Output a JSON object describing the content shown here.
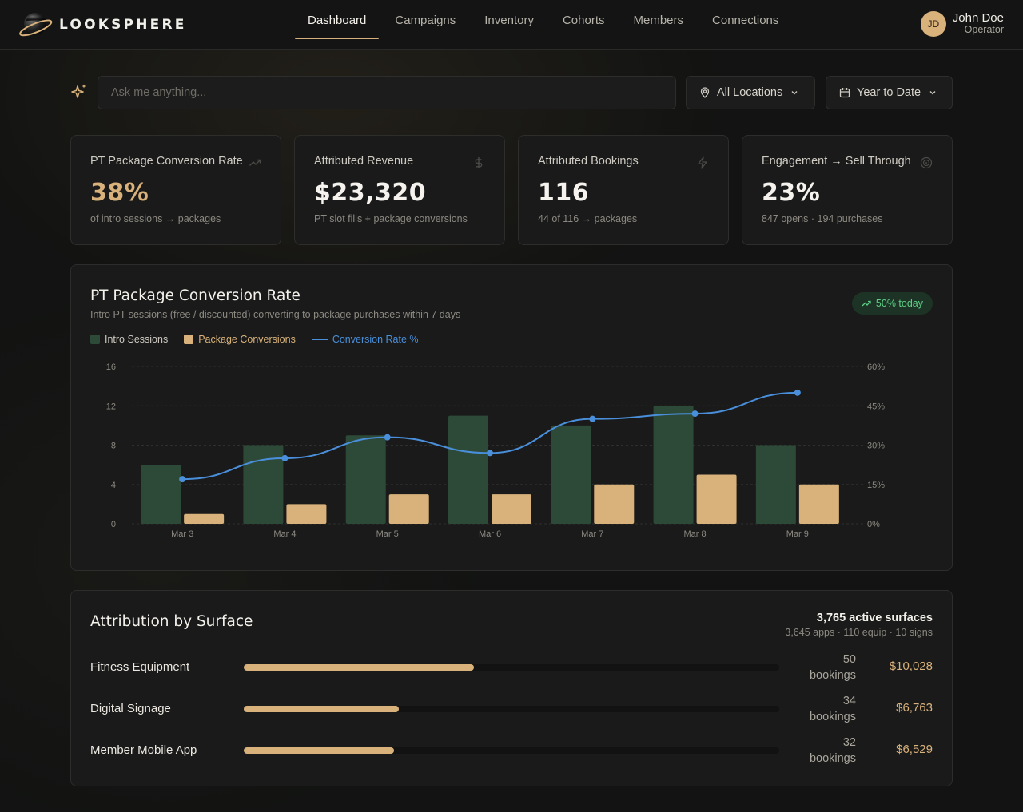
{
  "brand": {
    "name": "LOOKSPHERE"
  },
  "nav": {
    "items": [
      {
        "label": "Dashboard",
        "active": true
      },
      {
        "label": "Campaigns"
      },
      {
        "label": "Inventory"
      },
      {
        "label": "Cohorts"
      },
      {
        "label": "Members"
      },
      {
        "label": "Connections"
      }
    ]
  },
  "user": {
    "initials": "JD",
    "name": "John Doe",
    "role": "Operator"
  },
  "search": {
    "placeholder": "Ask me anything...",
    "value": ""
  },
  "filters": {
    "location": "All Locations",
    "period": "Year to Date"
  },
  "kpis": [
    {
      "title": "PT Package Conversion Rate",
      "value": "38%",
      "sub": "of intro sessions → packages",
      "icon": "trend-up-icon"
    },
    {
      "title": "Attributed Revenue",
      "value": "$23,320",
      "sub": "PT slot fills + package conversions",
      "icon": "dollar-icon"
    },
    {
      "title": "Attributed Bookings",
      "value": "116",
      "sub": "44 of 116 → packages",
      "icon": "lightning-icon"
    },
    {
      "title": "Engagement → Sell Through",
      "value": "23%",
      "sub": "847 opens · 194 purchases",
      "icon": "target-icon"
    }
  ],
  "chart_panel": {
    "title": "PT Package Conversion Rate",
    "subtitle": "Intro PT sessions (free / discounted) converting to package purchases within 7 days",
    "badge": "50% today"
  },
  "colors": {
    "accent": "#d9b27b",
    "intro_bar": "#2d4a38",
    "line": "#4a8fdc",
    "positive": "#5fcf86"
  },
  "chart_data": {
    "type": "bar",
    "categories": [
      "Mar 3",
      "Mar 4",
      "Mar 5",
      "Mar 6",
      "Mar 7",
      "Mar 8",
      "Mar 9"
    ],
    "series": [
      {
        "name": "Intro Sessions",
        "type": "bar",
        "axis": "left",
        "values": [
          6,
          8,
          9,
          11,
          10,
          12,
          8
        ]
      },
      {
        "name": "Package Conversions",
        "type": "bar",
        "axis": "left",
        "values": [
          1,
          2,
          3,
          3,
          4,
          5,
          4
        ]
      },
      {
        "name": "Conversion Rate %",
        "type": "line",
        "axis": "right",
        "values": [
          17,
          25,
          33,
          27,
          40,
          42,
          50
        ]
      }
    ],
    "ylim": [
      0,
      16
    ],
    "yticks": [
      "0",
      "4",
      "8",
      "12",
      "16"
    ],
    "y2lim": [
      0,
      60
    ],
    "y2ticks": [
      "0%",
      "15%",
      "30%",
      "45%",
      "60%"
    ],
    "grid": true,
    "legend": "top-left"
  },
  "attribution": {
    "title": "Attribution by Surface",
    "total": "3,765 active surfaces",
    "total_sub": "3,645 apps · 110 equip · 10 signs",
    "rows": [
      {
        "label": "Fitness Equipment",
        "count": "50",
        "unit": "bookings",
        "amount": "$10,028",
        "share": 0.43
      },
      {
        "label": "Digital Signage",
        "count": "34",
        "unit": "bookings",
        "amount": "$6,763",
        "share": 0.29
      },
      {
        "label": "Member Mobile App",
        "count": "32",
        "unit": "bookings",
        "amount": "$6,529",
        "share": 0.28
      }
    ]
  }
}
